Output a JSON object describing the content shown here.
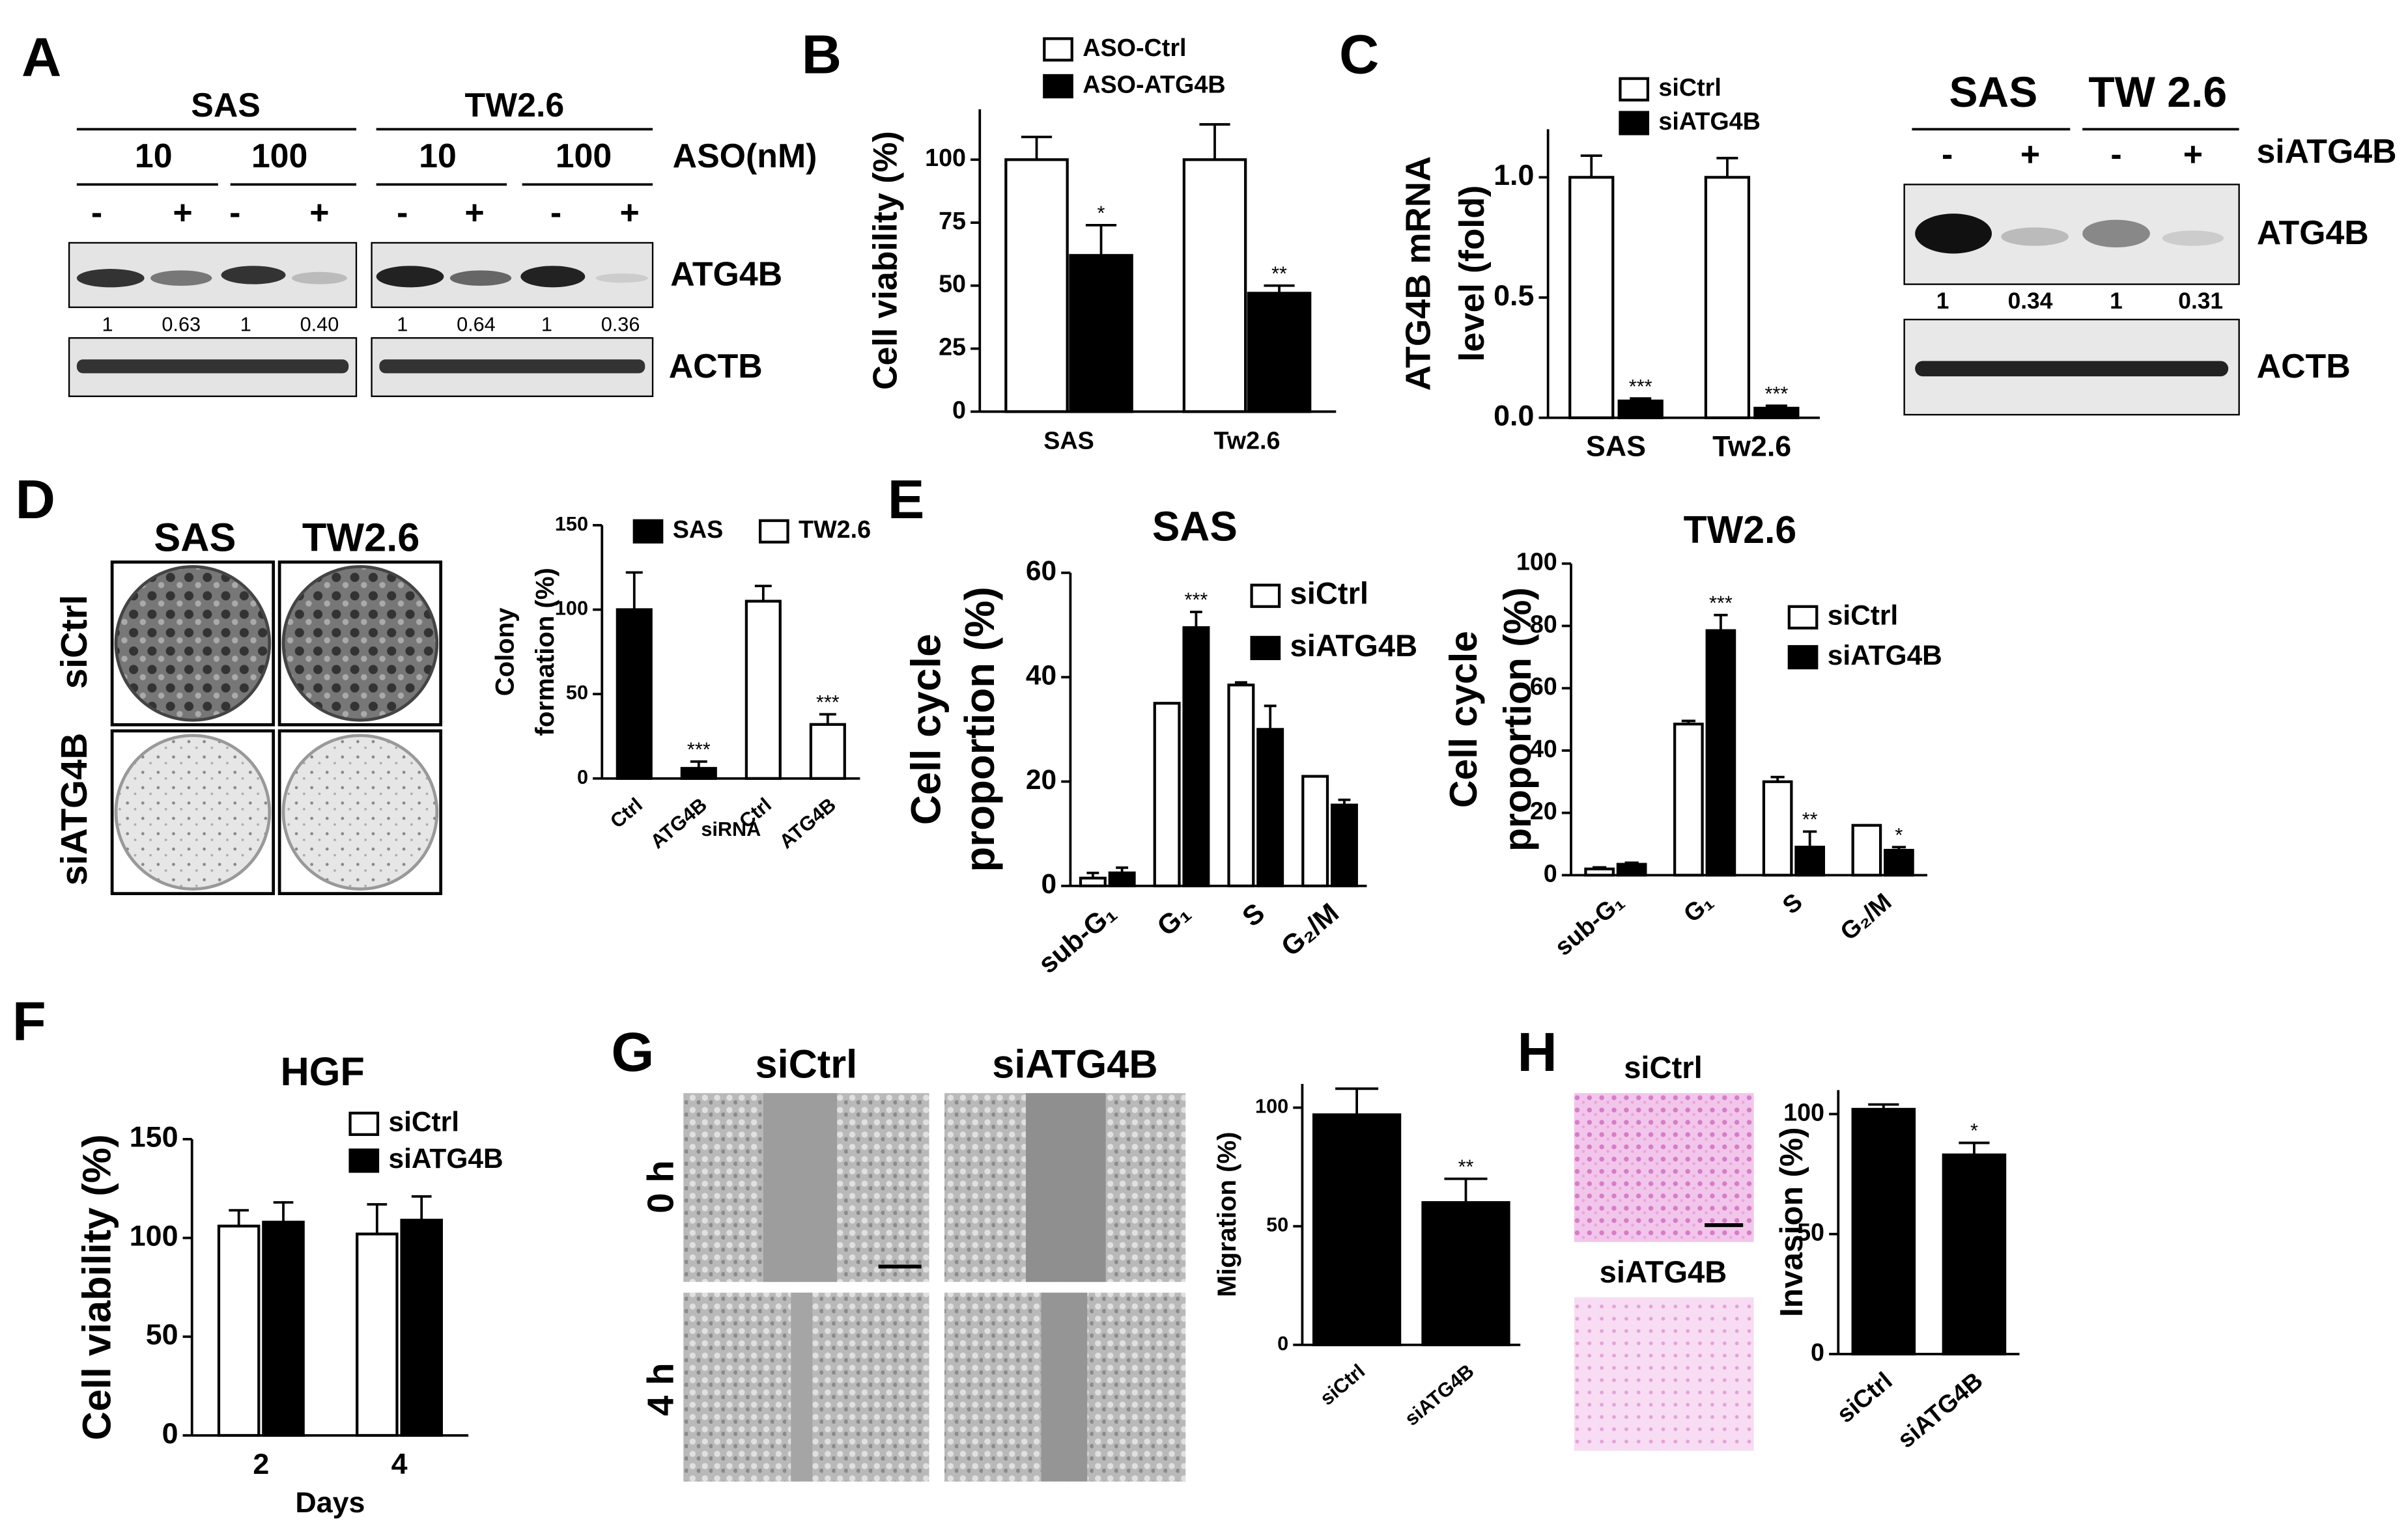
{
  "panels": [
    "A",
    "B",
    "C",
    "D",
    "E",
    "F",
    "G",
    "H"
  ],
  "blot_A": {
    "cells": [
      "SAS",
      "TW2.6"
    ],
    "doses": [
      "10",
      "100",
      "10",
      "100"
    ],
    "dose_unit": "ASO(nM)",
    "lanes": [
      "-",
      "+",
      "-",
      "+",
      "-",
      "+",
      "-",
      "+"
    ],
    "proteins": [
      "ATG4B",
      "ACTB"
    ],
    "ratios": [
      "1",
      "0.63",
      "1",
      "0.40",
      "1",
      "0.64",
      "1",
      "0.36"
    ]
  },
  "blot_C": {
    "cells": [
      "SAS",
      "TW 2.6"
    ],
    "lanes": [
      "-",
      "+",
      "-",
      "+"
    ],
    "treatment": "siATG4B",
    "proteins": [
      "ATG4B",
      "ACTB"
    ],
    "ratios": [
      "1",
      "0.34",
      "1",
      "0.31"
    ]
  },
  "images_D": {
    "columns": [
      "SAS",
      "TW2.6"
    ],
    "rows": [
      "siCtrl",
      "siATG4B"
    ]
  },
  "images_G": {
    "columns": [
      "siCtrl",
      "siATG4B"
    ],
    "rows": [
      "0 h",
      "4 h"
    ]
  },
  "images_H": {
    "rows": [
      "siCtrl",
      "siATG4B"
    ]
  },
  "chart_data": [
    {
      "type": "bar",
      "ylabel": "Cell viability (%)",
      "categories": [
        "SAS",
        "Tw2.6"
      ],
      "ylim": [
        0,
        120
      ],
      "yticks": [
        0,
        25,
        50,
        75,
        100
      ],
      "series": [
        {
          "name": "ASO-Ctrl",
          "color": "#ffffff",
          "values": [
            100,
            100
          ],
          "errors": [
            9,
            14
          ],
          "significance": [
            null,
            null
          ]
        },
        {
          "name": "ASO-ATG4B",
          "color": "#000000",
          "values": [
            62,
            47
          ],
          "errors": [
            12,
            3
          ],
          "significance": [
            "*",
            "**"
          ]
        }
      ]
    },
    {
      "type": "bar",
      "ylabel": [
        "ATG4B mRNA",
        "level (fold)"
      ],
      "categories": [
        "SAS",
        "Tw2.6"
      ],
      "ylim": [
        0,
        1.2
      ],
      "yticks": [
        {
          "value": 0,
          "label": "0.0"
        },
        {
          "value": 0.5,
          "label": "0.5"
        },
        {
          "value": 1,
          "label": "1.0"
        }
      ],
      "series": [
        {
          "name": "siCtrl",
          "color": "#ffffff",
          "values": [
            1,
            1
          ],
          "errors": [
            0.09,
            0.08
          ],
          "significance": [
            null,
            null
          ]
        },
        {
          "name": "siATG4B",
          "color": "#000000",
          "values": [
            0.07,
            0.04
          ],
          "errors": [
            0.01,
            0.01
          ],
          "significance": [
            "***",
            "***"
          ]
        }
      ]
    },
    {
      "type": "bar",
      "ylabel": [
        "Colony",
        "formation (%)"
      ],
      "xlabel": "siRNA",
      "categories": [
        "Ctrl",
        "ATG4B",
        "Ctrl",
        "ATG4B"
      ],
      "ylim": [
        0,
        150
      ],
      "yticks": [
        0,
        50,
        100,
        150
      ],
      "series": [
        {
          "name": "SAS",
          "color": "#000000",
          "values": [
            100,
            6,
            null,
            null
          ],
          "errors": [
            22,
            4,
            null,
            null
          ],
          "significance": [
            null,
            "***",
            null,
            null
          ]
        },
        {
          "name": "TW2.6",
          "color": "#ffffff",
          "values": [
            null,
            null,
            105,
            32
          ],
          "errors": [
            null,
            null,
            9,
            6
          ],
          "significance": [
            null,
            null,
            null,
            "***"
          ]
        }
      ]
    },
    {
      "type": "bar",
      "title": "SAS",
      "ylabel": [
        "Cell cycle",
        "proportion (%)"
      ],
      "categories": [
        "sub-G₁",
        "G₁",
        "S",
        "G₂/M"
      ],
      "ylim": [
        0,
        60
      ],
      "yticks": [
        0,
        20,
        40,
        60
      ],
      "series": [
        {
          "name": "siCtrl",
          "color": "#ffffff",
          "values": [
            1.5,
            35,
            38.5,
            21
          ],
          "errors": [
            1,
            0,
            0.5,
            0
          ],
          "significance": [
            null,
            null,
            null,
            null
          ]
        },
        {
          "name": "siATG4B",
          "color": "#000000",
          "values": [
            2.5,
            49.5,
            30,
            15.5
          ],
          "errors": [
            1,
            3,
            4.5,
            1
          ],
          "significance": [
            null,
            "***",
            null,
            null
          ]
        }
      ]
    },
    {
      "type": "bar",
      "title": "TW2.6",
      "ylabel": [
        "Cell cycle",
        "proportion (%)"
      ],
      "categories": [
        "sub-G₁",
        "G₁",
        "S",
        "G₂/M"
      ],
      "ylim": [
        0,
        100
      ],
      "yticks": [
        0,
        20,
        40,
        60,
        80,
        100
      ],
      "series": [
        {
          "name": "siCtrl",
          "color": "#ffffff",
          "values": [
            2,
            48.5,
            30,
            16
          ],
          "errors": [
            0.5,
            1,
            1.5,
            0
          ],
          "significance": [
            null,
            null,
            null,
            null
          ]
        },
        {
          "name": "siATG4B",
          "color": "#000000",
          "values": [
            3.5,
            78.5,
            9,
            8
          ],
          "errors": [
            0.5,
            5,
            5,
            1
          ],
          "significance": [
            null,
            "***",
            "**",
            "*"
          ]
        }
      ]
    },
    {
      "type": "bar",
      "title": "HGF",
      "ylabel": "Cell viability (%)",
      "xlabel": "Days",
      "categories": [
        "2",
        "4"
      ],
      "ylim": [
        0,
        150
      ],
      "yticks": [
        0,
        50,
        100,
        150
      ],
      "series": [
        {
          "name": "siCtrl",
          "color": "#ffffff",
          "values": [
            106,
            102
          ],
          "errors": [
            8,
            15
          ],
          "significance": [
            null,
            null
          ]
        },
        {
          "name": "siATG4B",
          "color": "#000000",
          "values": [
            108,
            109
          ],
          "errors": [
            10,
            12
          ],
          "significance": [
            null,
            null
          ]
        }
      ]
    },
    {
      "type": "bar",
      "ylabel": "Migration (%)",
      "categories": [
        "siCtrl",
        "siATG4B"
      ],
      "ylim": [
        0,
        110
      ],
      "yticks": [
        0,
        50,
        100
      ],
      "color": "#000000",
      "values": [
        97,
        60
      ],
      "errors": [
        11,
        10
      ],
      "significance": [
        null,
        "**"
      ]
    },
    {
      "type": "bar",
      "ylabel": "Invasion (%)",
      "categories": [
        "siCtrl",
        "siATG4B"
      ],
      "ylim": [
        0,
        110
      ],
      "yticks": [
        0,
        50,
        100
      ],
      "color": "#000000",
      "values": [
        102,
        83
      ],
      "errors": [
        2,
        5
      ],
      "significance": [
        null,
        "*"
      ]
    }
  ]
}
